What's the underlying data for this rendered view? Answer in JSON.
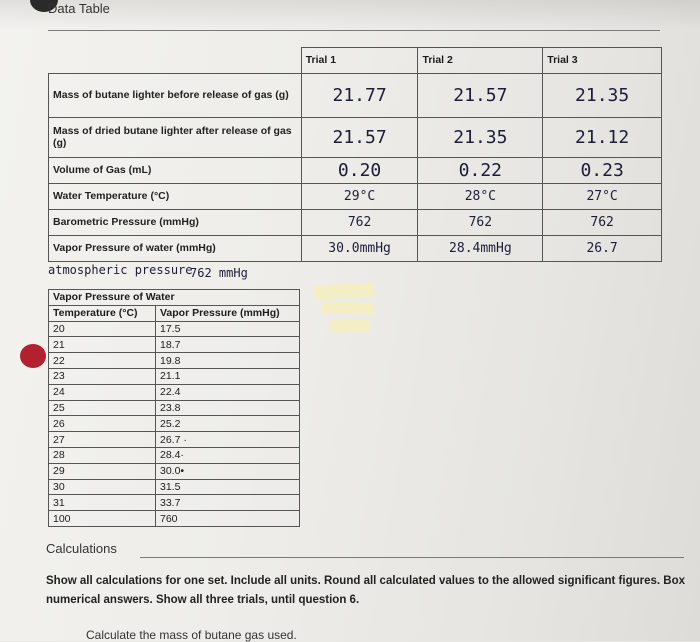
{
  "header": {
    "title": "Data Table"
  },
  "main_table": {
    "trials": [
      "Trial 1",
      "Trial 2",
      "Trial 3"
    ],
    "rows": [
      {
        "label": "Mass of butane lighter before release of gas (g)",
        "values": [
          "21.77",
          "21.57",
          "21.35"
        ]
      },
      {
        "label": "Mass of dried butane lighter after release of gas (g)",
        "values": [
          "21.57",
          "21.35",
          "21.12"
        ]
      },
      {
        "label": "Volume of Gas (mL)",
        "values": [
          "0.20",
          "0.22",
          "0.23"
        ]
      },
      {
        "label": "Water Temperature (°C)",
        "values": [
          "29°C",
          "28°C",
          "27°C"
        ]
      },
      {
        "label": "Barometric Pressure (mmHg)",
        "values": [
          "762",
          "762",
          "762"
        ]
      },
      {
        "label": "Vapor Pressure of water (mmHg)",
        "values": [
          "30.0mmHg",
          "28.4mmHg",
          "26.7"
        ]
      }
    ]
  },
  "notes": {
    "atm_label": "atmospheric pressure",
    "atm_value": "762 mmHg"
  },
  "vapor_table": {
    "title": "Vapor Pressure of Water",
    "col_temp": "Temperature (°C)",
    "col_pressure": "Vapor Pressure (mmHg)",
    "rows": [
      {
        "t": "20",
        "p": "17.5"
      },
      {
        "t": "21",
        "p": "18.7"
      },
      {
        "t": "22",
        "p": "19.8"
      },
      {
        "t": "23",
        "p": "21.1"
      },
      {
        "t": "24",
        "p": "22.4"
      },
      {
        "t": "25",
        "p": "23.8"
      },
      {
        "t": "26",
        "p": "25.2"
      },
      {
        "t": "27",
        "p": "26.7 ·"
      },
      {
        "t": "28",
        "p": "28.4·"
      },
      {
        "t": "29",
        "p": "30.0•"
      },
      {
        "t": "30",
        "p": "31.5"
      },
      {
        "t": "31",
        "p": "33.7"
      },
      {
        "t": "100",
        "p": "760"
      }
    ]
  },
  "calculations": {
    "title": "Calculations",
    "instructions": "Show all calculations for one set. Include all units. Round all calculated values to the allowed significant figures. Box numerical answers. Show all three trials, until question 6.",
    "question_1": "Calculate the mass of butane gas used."
  }
}
